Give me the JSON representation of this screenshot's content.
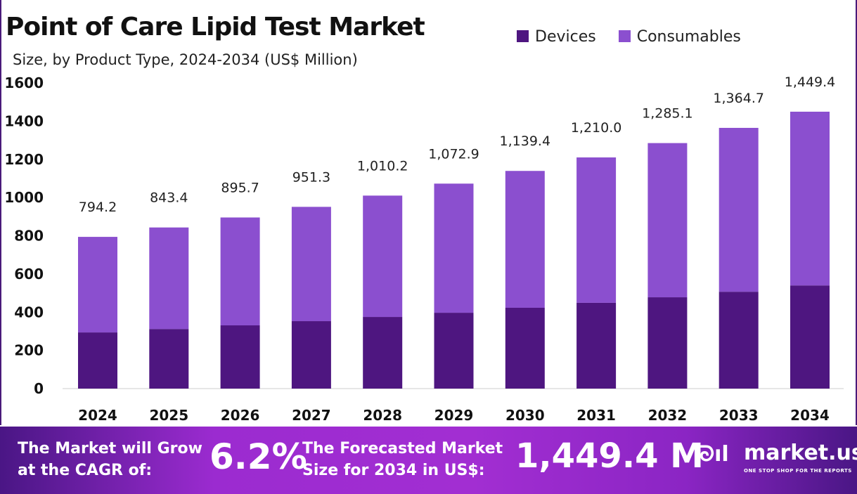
{
  "chart_data": {
    "type": "bar",
    "stacked": true,
    "title": "Point of Care Lipid Test Market",
    "subtitle": "Size, by Product Type, 2024-2034 (US$ Million)",
    "categories": [
      "2024",
      "2025",
      "2026",
      "2027",
      "2028",
      "2029",
      "2030",
      "2031",
      "2032",
      "2033",
      "2034"
    ],
    "series": [
      {
        "name": "Devices",
        "color": "#4e1680",
        "values": [
          294,
          312,
          331,
          353,
          375,
          397,
          423,
          449,
          478,
          507,
          540
        ]
      },
      {
        "name": "Consumables",
        "color": "#8b4fcf",
        "values": [
          500.2,
          531.4,
          564.7,
          598.3,
          635.2,
          675.9,
          716.4,
          761.0,
          807.1,
          857.7,
          909.4
        ]
      }
    ],
    "totals": [
      "794.2",
      "843.4",
      "895.7",
      "951.3",
      "1,010.2",
      "1,072.9",
      "1,139.4",
      "1,210.0",
      "1,285.1",
      "1,364.7",
      "1,449.4"
    ],
    "totals_values": [
      794.2,
      843.4,
      895.7,
      951.3,
      1010.2,
      1072.9,
      1139.4,
      1210.0,
      1285.1,
      1364.7,
      1449.4
    ],
    "yticks": [
      "0",
      "200",
      "400",
      "600",
      "800",
      "1000",
      "1200",
      "1400",
      "1600"
    ],
    "ylim": [
      0,
      1600
    ],
    "legend": "top-right",
    "grid": false
  },
  "footer": {
    "cagr_label_1": "The Market will Grow",
    "cagr_label_2": "at the CAGR of:",
    "cagr_value": "6.2%",
    "size_label_1": "The Forecasted Market",
    "size_label_2": "Size for 2034 in US$:",
    "size_value": "1,449.4 M",
    "brand": "market.us",
    "tagline": "ONE STOP SHOP FOR THE REPORTS"
  }
}
